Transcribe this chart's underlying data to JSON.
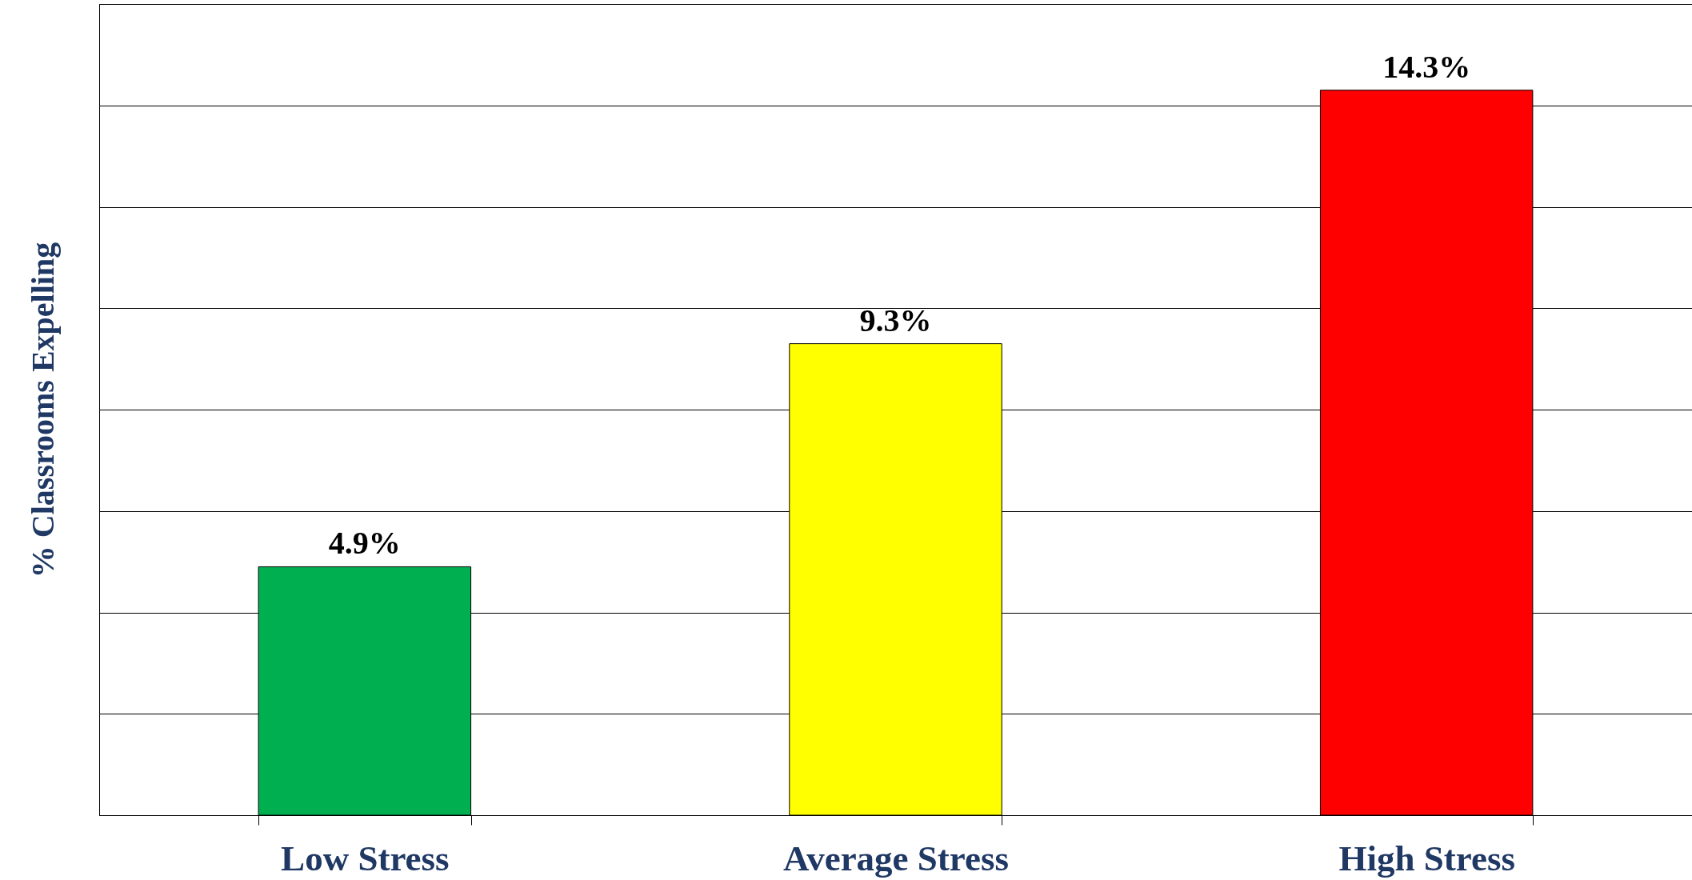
{
  "chart_data": {
    "type": "bar",
    "ylabel": "% Classrooms Expelling",
    "categories": [
      "Low Stress",
      "Average Stress",
      "High Stress"
    ],
    "values": [
      4.9,
      9.3,
      14.3
    ],
    "colors": [
      "#00b050",
      "#ffff00",
      "#ff0000"
    ],
    "value_labels": [
      "4.9%",
      "9.3%",
      "14.3%"
    ],
    "ylim": [
      0,
      16
    ],
    "yticks": [
      {
        "value": 0,
        "label": null
      },
      {
        "value": 2,
        "label": null
      },
      {
        "value": 4,
        "label": null
      },
      {
        "value": 6,
        "label": null
      },
      {
        "value": 8,
        "label": null
      },
      {
        "value": 10,
        "label": null
      },
      {
        "value": 12,
        "label": null
      },
      {
        "value": 14,
        "label": null
      },
      {
        "value": 16,
        "label": null
      }
    ],
    "grid": "y",
    "tick_labels": "x"
  }
}
